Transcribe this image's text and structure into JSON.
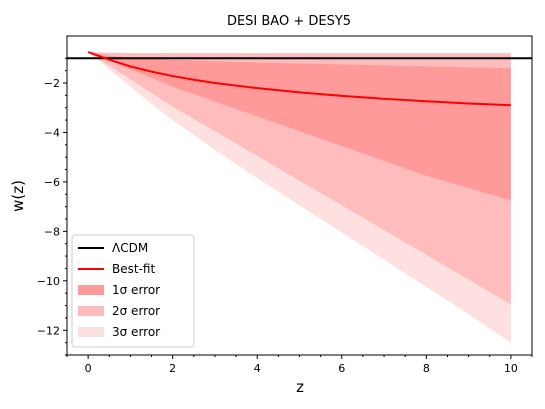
{
  "chart_data": {
    "type": "line",
    "title": "DESI BAO + DESY5",
    "xlabel": "z",
    "ylabel": "w(z)",
    "xlim": [
      -0.5,
      10.5
    ],
    "ylim": [
      -13.0,
      -0.1
    ],
    "xticks": [
      0,
      2,
      4,
      6,
      8,
      10
    ],
    "yticks": [
      -2,
      -4,
      -6,
      -8,
      -10,
      -12
    ],
    "xtick_labels": [
      "0",
      "2",
      "4",
      "6",
      "8",
      "10"
    ],
    "ytick_labels": [
      "−2",
      "−4",
      "−6",
      "−8",
      "−10",
      "−12"
    ],
    "grid": false,
    "legend_position": "lower-left",
    "x": [
      0,
      0.5,
      1,
      1.5,
      2,
      2.5,
      3,
      4,
      5,
      6,
      7,
      8,
      9,
      10
    ],
    "series": [
      {
        "name": "ΛCDM",
        "kind": "line",
        "color": "#000000",
        "x": [
          -0.5,
          10.5
        ],
        "values": [
          -1.0,
          -1.0
        ]
      },
      {
        "name": "Best-fit",
        "kind": "line",
        "color": "#ff0000",
        "values": [
          -0.75,
          -1.06,
          -1.33,
          -1.54,
          -1.72,
          -1.87,
          -2.0,
          -2.21,
          -2.38,
          -2.52,
          -2.64,
          -2.74,
          -2.83,
          -2.9
        ]
      },
      {
        "name": "1σ error",
        "kind": "band",
        "color": "#ff9a9a",
        "upper": [
          -0.75,
          -0.9,
          -0.97,
          -1.02,
          -1.06,
          -1.09,
          -1.12,
          -1.17,
          -1.21,
          -1.25,
          -1.29,
          -1.33,
          -1.37,
          -1.4
        ],
        "lower": [
          -0.75,
          -1.1,
          -1.45,
          -1.8,
          -2.15,
          -2.45,
          -2.75,
          -3.35,
          -3.95,
          -4.55,
          -5.15,
          -5.75,
          -6.25,
          -6.75
        ]
      },
      {
        "name": "2σ error",
        "kind": "band",
        "color": "#ffbcbc",
        "upper": [
          -0.75,
          -0.78,
          -0.79,
          -0.8,
          -0.8,
          -0.8,
          -0.8,
          -0.8,
          -0.8,
          -0.8,
          -0.8,
          -0.8,
          -0.8,
          -0.8
        ],
        "lower": [
          -0.75,
          -1.3,
          -1.85,
          -2.4,
          -2.95,
          -3.45,
          -3.95,
          -4.95,
          -5.95,
          -6.95,
          -7.95,
          -8.95,
          -9.95,
          -10.95
        ]
      },
      {
        "name": "3σ error",
        "kind": "band",
        "color": "#ffe0e0",
        "upper": [
          -0.75,
          -0.78,
          -0.79,
          -0.8,
          -0.8,
          -0.8,
          -0.8,
          -0.8,
          -0.8,
          -0.8,
          -0.8,
          -0.8,
          -0.8,
          -0.8
        ],
        "lower": [
          -0.75,
          -1.45,
          -2.15,
          -2.85,
          -3.5,
          -4.1,
          -4.7,
          -5.85,
          -6.95,
          -8.05,
          -9.15,
          -10.25,
          -11.35,
          -12.5
        ]
      }
    ]
  }
}
